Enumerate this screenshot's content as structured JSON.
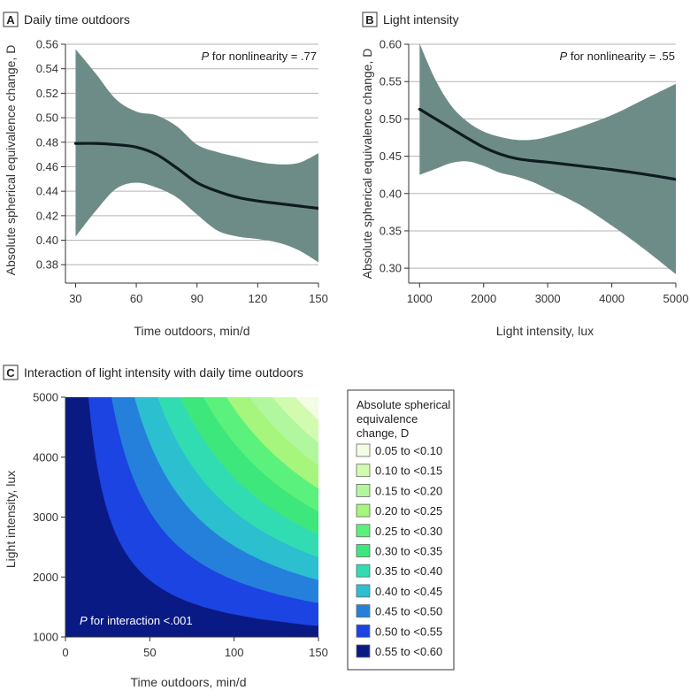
{
  "chart_data": [
    {
      "panel": "A",
      "type": "line",
      "title": "Daily time outdoors",
      "xlabel": "Time outdoors, min/d",
      "ylabel": "Absolute spherical equivalence change, D",
      "xlim": [
        25,
        150
      ],
      "ylim": [
        0.365,
        0.56
      ],
      "xticks": [
        30,
        60,
        90,
        120,
        150
      ],
      "yticks": [
        0.38,
        0.4,
        0.42,
        0.44,
        0.46,
        0.48,
        0.5,
        0.52,
        0.54,
        0.56
      ],
      "ytick_labels": [
        "0.38",
        "0.40",
        "0.42",
        "0.44",
        "0.46",
        "0.48",
        "0.50",
        "0.52",
        "0.54",
        "0.56"
      ],
      "annotation_italic": "P",
      "annotation_rest": " for nonlinearity = .77",
      "x": [
        30,
        40,
        50,
        60,
        70,
        80,
        90,
        100,
        110,
        120,
        130,
        140,
        150
      ],
      "series": [
        {
          "name": "estimate",
          "values": [
            0.479,
            0.479,
            0.478,
            0.476,
            0.47,
            0.459,
            0.447,
            0.44,
            0.435,
            0.432,
            0.43,
            0.428,
            0.426
          ]
        },
        {
          "name": "upper",
          "values": [
            0.556,
            0.536,
            0.515,
            0.505,
            0.502,
            0.493,
            0.478,
            0.472,
            0.468,
            0.464,
            0.462,
            0.463,
            0.471
          ]
        },
        {
          "name": "lower",
          "values": [
            0.403,
            0.424,
            0.442,
            0.447,
            0.443,
            0.435,
            0.421,
            0.408,
            0.403,
            0.401,
            0.398,
            0.392,
            0.382
          ]
        }
      ]
    },
    {
      "panel": "B",
      "type": "line",
      "title": "Light intensity",
      "xlabel": "Light intensity, lux",
      "ylabel": "Absolute spherical equivalence change, D",
      "xlim": [
        830,
        5000
      ],
      "ylim": [
        0.28,
        0.6
      ],
      "xticks": [
        1000,
        2000,
        3000,
        4000,
        5000
      ],
      "yticks": [
        0.3,
        0.35,
        0.4,
        0.45,
        0.5,
        0.55,
        0.6
      ],
      "ytick_labels": [
        "0.30",
        "0.35",
        "0.40",
        "0.45",
        "0.50",
        "0.55",
        "0.60"
      ],
      "annotation_italic": "P",
      "annotation_rest": " for nonlinearity = .55",
      "x": [
        1000,
        1250,
        1500,
        1750,
        2000,
        2250,
        2500,
        2750,
        3000,
        3500,
        4000,
        4500,
        5000
      ],
      "series": [
        {
          "name": "estimate",
          "values": [
            0.513,
            0.5,
            0.487,
            0.474,
            0.462,
            0.453,
            0.447,
            0.444,
            0.442,
            0.437,
            0.432,
            0.426,
            0.419
          ]
        },
        {
          "name": "upper",
          "values": [
            0.601,
            0.552,
            0.517,
            0.496,
            0.483,
            0.476,
            0.472,
            0.472,
            0.476,
            0.489,
            0.505,
            0.526,
            0.547
          ]
        },
        {
          "name": "lower",
          "values": [
            0.425,
            0.433,
            0.441,
            0.443,
            0.437,
            0.428,
            0.423,
            0.416,
            0.406,
            0.385,
            0.357,
            0.326,
            0.292
          ]
        }
      ]
    },
    {
      "panel": "C",
      "type": "heatmap",
      "title": "Interaction of light intensity with daily time outdoors",
      "xlabel": "Time outdoors, min/d",
      "ylabel": "Light intensity, lux",
      "xlim": [
        0,
        150
      ],
      "ylim": [
        1000,
        5000
      ],
      "xticks": [
        0,
        50,
        100,
        150
      ],
      "yticks": [
        1000,
        2000,
        3000,
        4000,
        5000
      ],
      "annotation_italic": "P",
      "annotation_rest": " for interaction <.001",
      "legend_title": [
        "Absolute spherical",
        "equivalence",
        "change, D"
      ],
      "levels": [
        {
          "label": "0.05 to <0.10",
          "color": "#f2fde3"
        },
        {
          "label": "0.10 to <0.15",
          "color": "#d3fbb0"
        },
        {
          "label": "0.15 to <0.20",
          "color": "#b0f79d"
        },
        {
          "label": "0.20 to <0.25",
          "color": "#a6f57c"
        },
        {
          "label": "0.25 to <0.30",
          "color": "#5af27c"
        },
        {
          "label": "0.30 to <0.35",
          "color": "#3ee77c"
        },
        {
          "label": "0.35 to <0.40",
          "color": "#32dcb2"
        },
        {
          "label": "0.40 to <0.45",
          "color": "#2bbfd0"
        },
        {
          "label": "0.45 to <0.50",
          "color": "#2580dc"
        },
        {
          "label": "0.50 to <0.55",
          "color": "#1c44e2"
        },
        {
          "label": "0.55 to <0.60",
          "color": "#0a1a85"
        }
      ]
    }
  ]
}
